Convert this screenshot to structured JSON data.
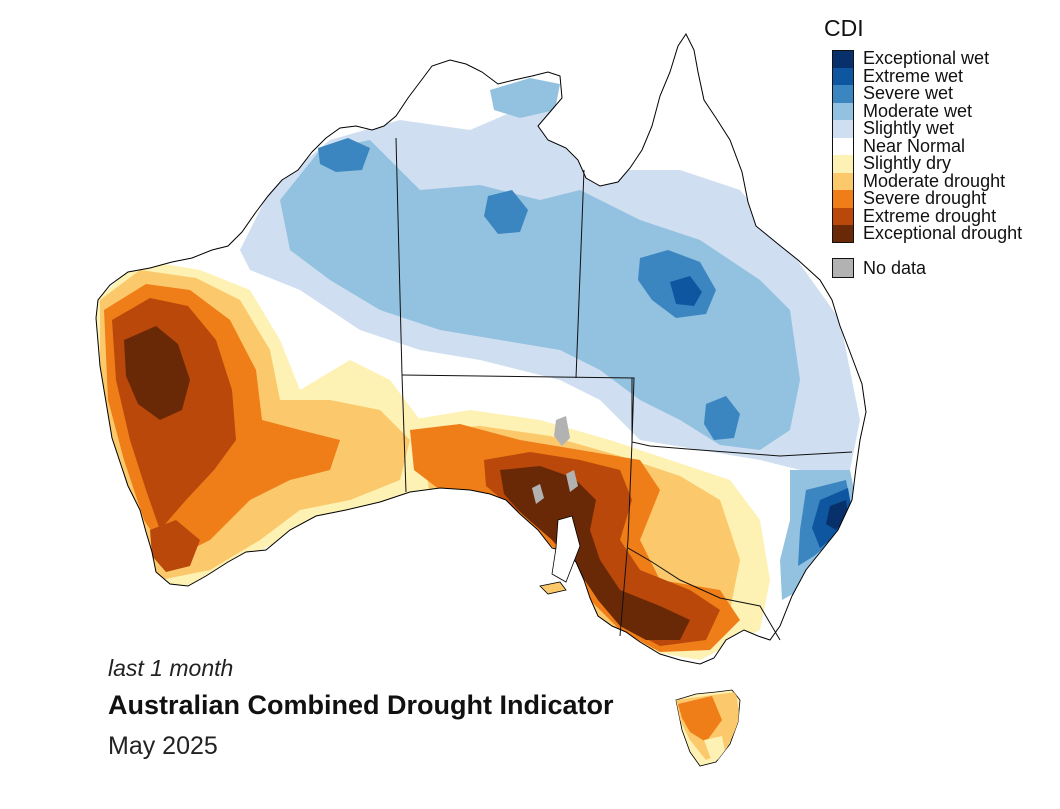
{
  "legend": {
    "title": "CDI",
    "classes": [
      {
        "label": "Exceptional wet",
        "color": "#08306b"
      },
      {
        "label": "Extreme wet",
        "color": "#0e56a0"
      },
      {
        "label": "Severe wet",
        "color": "#3b86c0"
      },
      {
        "label": "Moderate wet",
        "color": "#93c1e0"
      },
      {
        "label": "Slightly wet",
        "color": "#cfdff1"
      },
      {
        "label": "Near Normal",
        "color": "#ffffff"
      },
      {
        "label": "Slightly dry",
        "color": "#fdf1b3"
      },
      {
        "label": "Moderate drought",
        "color": "#fbc96b"
      },
      {
        "label": "Severe drought",
        "color": "#ef7d18"
      },
      {
        "label": "Extreme drought",
        "color": "#b9480a"
      },
      {
        "label": "Exceptional drought",
        "color": "#6a2906"
      }
    ],
    "no_data": {
      "label": "No data",
      "color": "#b2b2b2"
    }
  },
  "caption": {
    "period": "last 1 month",
    "title": "Australian Combined Drought Indicator",
    "date": "May 2025"
  }
}
